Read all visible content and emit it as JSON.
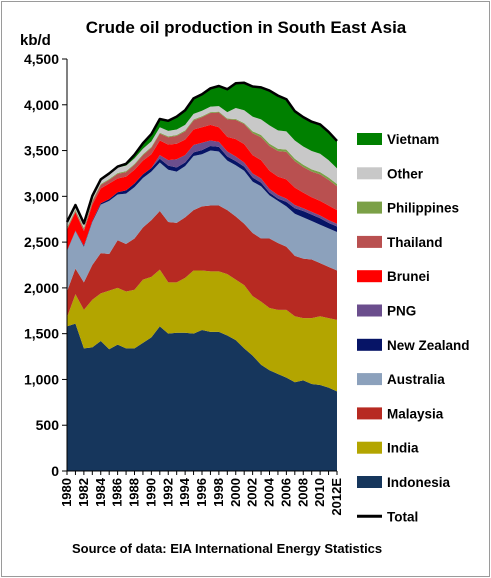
{
  "chart_data": {
    "type": "area",
    "stacked": true,
    "title": "Crude oil production in South East Asia",
    "ylabel": "kb/d",
    "xlabel": "",
    "ylim": [
      0,
      4500
    ],
    "yticks": [
      0,
      500,
      1000,
      1500,
      2000,
      2500,
      3000,
      3500,
      4000,
      4500
    ],
    "ytick_labels": [
      "0",
      "500",
      "1,000",
      "1,500",
      "2,000",
      "2,500",
      "3,000",
      "3,500",
      "4,000",
      "4,500"
    ],
    "x": [
      "1980",
      "1981",
      "1982",
      "1983",
      "1984",
      "1985",
      "1986",
      "1987",
      "1988",
      "1989",
      "1990",
      "1991",
      "1992",
      "1993",
      "1994",
      "1995",
      "1996",
      "1997",
      "1998",
      "1999",
      "2000",
      "2001",
      "2002",
      "2003",
      "2004",
      "2005",
      "2006",
      "2007",
      "2008",
      "2009",
      "2010",
      "2011",
      "2012E"
    ],
    "xtick_labels": [
      "1980",
      "1982",
      "1984",
      "1986",
      "1988",
      "1990",
      "1992",
      "1994",
      "1996",
      "1998",
      "2000",
      "2002",
      "2004",
      "2006",
      "2008",
      "2010",
      "2012E"
    ],
    "grid": false,
    "legend_position": "right",
    "source": "Source of data: EIA International Energy Statistics",
    "series": [
      {
        "name": "Indonesia",
        "color": "#16365C",
        "values": [
          1580,
          1610,
          1340,
          1350,
          1420,
          1330,
          1380,
          1340,
          1340,
          1400,
          1460,
          1580,
          1500,
          1510,
          1510,
          1500,
          1540,
          1520,
          1520,
          1480,
          1430,
          1340,
          1260,
          1160,
          1100,
          1060,
          1020,
          970,
          990,
          950,
          940,
          910,
          870
        ]
      },
      {
        "name": "India",
        "color": "#B3A500",
        "values": [
          100,
          320,
          420,
          520,
          520,
          640,
          620,
          620,
          640,
          690,
          660,
          620,
          560,
          550,
          600,
          690,
          650,
          660,
          660,
          670,
          660,
          690,
          650,
          690,
          680,
          700,
          740,
          720,
          680,
          720,
          750,
          760,
          780
        ]
      },
      {
        "name": "Malaysia",
        "color": "#B72A22",
        "values": [
          280,
          280,
          300,
          380,
          440,
          400,
          520,
          520,
          560,
          570,
          620,
          640,
          660,
          650,
          660,
          660,
          700,
          720,
          720,
          700,
          690,
          670,
          690,
          690,
          760,
          730,
          690,
          660,
          650,
          640,
          580,
          560,
          540
        ]
      },
      {
        "name": "Australia",
        "color": "#8CA1BC",
        "values": [
          440,
          410,
          390,
          470,
          530,
          580,
          500,
          550,
          560,
          540,
          530,
          530,
          570,
          560,
          560,
          590,
          570,
          600,
          590,
          540,
          560,
          580,
          560,
          570,
          470,
          460,
          440,
          460,
          450,
          420,
          420,
          420,
          420
        ]
      },
      {
        "name": "New Zealand",
        "color": "#061466",
        "values": [
          5,
          5,
          10,
          10,
          15,
          20,
          25,
          35,
          40,
          40,
          40,
          40,
          45,
          45,
          40,
          40,
          45,
          50,
          50,
          45,
          45,
          45,
          45,
          40,
          30,
          25,
          50,
          60,
          70,
          70,
          70,
          60,
          60
        ]
      },
      {
        "name": "PNG",
        "color": "#6B4E8D",
        "values": [
          0,
          0,
          0,
          0,
          0,
          0,
          0,
          0,
          0,
          0,
          0,
          40,
          60,
          90,
          80,
          80,
          80,
          60,
          55,
          55,
          50,
          45,
          45,
          45,
          40,
          40,
          35,
          35,
          30,
          30,
          30,
          30,
          30
        ]
      },
      {
        "name": "Brunei",
        "color": "#FF0000",
        "values": [
          230,
          200,
          160,
          180,
          160,
          170,
          150,
          150,
          150,
          150,
          150,
          160,
          170,
          170,
          170,
          170,
          170,
          170,
          160,
          160,
          190,
          200,
          200,
          200,
          200,
          200,
          210,
          190,
          170,
          160,
          160,
          160,
          150
        ]
      },
      {
        "name": "Thailand",
        "color": "#B95050",
        "values": [
          10,
          15,
          20,
          30,
          40,
          40,
          50,
          50,
          55,
          60,
          70,
          75,
          80,
          85,
          90,
          100,
          110,
          130,
          160,
          190,
          210,
          220,
          240,
          250,
          270,
          280,
          300,
          290,
          280,
          280,
          290,
          280,
          260
        ]
      },
      {
        "name": "Philippines",
        "color": "#7BA047",
        "values": [
          15,
          15,
          15,
          15,
          10,
          10,
          10,
          10,
          10,
          10,
          10,
          10,
          10,
          10,
          10,
          10,
          10,
          10,
          10,
          10,
          10,
          10,
          20,
          25,
          25,
          25,
          25,
          25,
          25,
          25,
          25,
          25,
          25
        ]
      },
      {
        "name": "Other",
        "color": "#C8C8C8",
        "values": [
          60,
          50,
          50,
          50,
          50,
          60,
          60,
          60,
          60,
          60,
          60,
          60,
          60,
          60,
          60,
          60,
          60,
          60,
          60,
          70,
          120,
          140,
          160,
          170,
          200,
          200,
          200,
          200,
          200,
          200,
          200,
          190,
          170
        ]
      },
      {
        "name": "Vietnam",
        "color": "#008000",
        "values": [
          0,
          0,
          0,
          0,
          0,
          0,
          10,
          20,
          40,
          60,
          80,
          90,
          110,
          140,
          160,
          170,
          180,
          200,
          220,
          250,
          270,
          300,
          330,
          350,
          380,
          380,
          350,
          320,
          320,
          320,
          320,
          310,
          300
        ]
      }
    ],
    "legend_order": [
      "Vietnam",
      "Other",
      "Philippines",
      "Thailand",
      "Brunei",
      "PNG",
      "New Zealand",
      "Australia",
      "Malaysia",
      "India",
      "Indonesia",
      "Total"
    ],
    "total_line": {
      "name": "Total",
      "color": "#000000"
    }
  }
}
